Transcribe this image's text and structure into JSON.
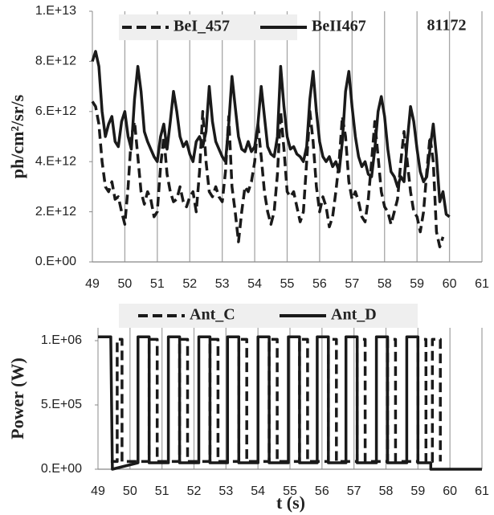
{
  "chart_data": [
    {
      "type": "line",
      "y_label": "ph/cm²/sr/s",
      "annotation": "81172",
      "grid": true,
      "x": [
        49.0,
        49.1,
        49.2,
        49.3,
        49.4,
        49.5,
        49.6,
        49.7,
        49.8,
        49.9,
        50.0,
        50.1,
        50.2,
        50.3,
        50.4,
        50.5,
        50.6,
        50.7,
        50.8,
        50.9,
        51.0,
        51.1,
        51.2,
        51.3,
        51.4,
        51.5,
        51.6,
        51.7,
        51.8,
        51.9,
        52.0,
        52.1,
        52.2,
        52.3,
        52.4,
        52.5,
        52.6,
        52.7,
        52.8,
        52.9,
        53.0,
        53.1,
        53.2,
        53.3,
        53.4,
        53.5,
        53.6,
        53.7,
        53.8,
        53.9,
        54.0,
        54.1,
        54.2,
        54.3,
        54.4,
        54.5,
        54.6,
        54.7,
        54.8,
        54.9,
        55.0,
        55.1,
        55.2,
        55.3,
        55.4,
        55.5,
        55.6,
        55.7,
        55.8,
        55.9,
        56.0,
        56.1,
        56.2,
        56.3,
        56.4,
        56.5,
        56.6,
        56.7,
        56.8,
        56.9,
        57.0,
        57.1,
        57.2,
        57.3,
        57.4,
        57.5,
        57.6,
        57.7,
        57.8,
        57.9,
        58.0,
        58.1,
        58.2,
        58.3,
        58.4,
        58.5,
        58.6,
        58.7,
        58.8,
        58.9,
        59.0,
        59.1,
        59.2,
        59.3,
        59.4,
        59.5,
        59.6,
        59.7,
        59.8,
        59.9,
        60.0
      ],
      "series": [
        {
          "name": "BeI_457",
          "color": "#1a1a1a",
          "style": "dashed",
          "values": [
            6400000000000.0,
            6200000000000.0,
            5500000000000.0,
            4000000000000.0,
            3000000000000.0,
            2800000000000.0,
            3200000000000.0,
            2500000000000.0,
            2600000000000.0,
            2000000000000.0,
            1500000000000.0,
            3000000000000.0,
            5000000000000.0,
            5600000000000.0,
            4200000000000.0,
            2800000000000.0,
            2300000000000.0,
            2800000000000.0,
            2500000000000.0,
            1800000000000.0,
            2000000000000.0,
            3800000000000.0,
            5000000000000.0,
            3500000000000.0,
            2800000000000.0,
            2400000000000.0,
            2500000000000.0,
            3000000000000.0,
            2400000000000.0,
            2200000000000.0,
            2600000000000.0,
            2800000000000.0,
            2000000000000.0,
            3600000000000.0,
            6000000000000.0,
            4000000000000.0,
            2800000000000.0,
            2600000000000.0,
            3000000000000.0,
            2600000000000.0,
            2400000000000.0,
            3600000000000.0,
            5800000000000.0,
            3000000000000.0,
            2000000000000.0,
            800000000000.0,
            2000000000000.0,
            3000000000000.0,
            2800000000000.0,
            3200000000000.0,
            4000000000000.0,
            5500000000000.0,
            4200000000000.0,
            2800000000000.0,
            2000000000000.0,
            1500000000000.0,
            2000000000000.0,
            3500000000000.0,
            6000000000000.0,
            4500000000000.0,
            2800000000000.0,
            2600000000000.0,
            2800000000000.0,
            2200000000000.0,
            1600000000000.0,
            2000000000000.0,
            4000000000000.0,
            6000000000000.0,
            4800000000000.0,
            3000000000000.0,
            2000000000000.0,
            2600000000000.0,
            2200000000000.0,
            1400000000000.0,
            1800000000000.0,
            2800000000000.0,
            4000000000000.0,
            5800000000000.0,
            5000000000000.0,
            3200000000000.0,
            2500000000000.0,
            2800000000000.0,
            2400000000000.0,
            1800000000000.0,
            1600000000000.0,
            2500000000000.0,
            4000000000000.0,
            5600000000000.0,
            4200000000000.0,
            2800000000000.0,
            2200000000000.0,
            2000000000000.0,
            1500000000000.0,
            2000000000000.0,
            2500000000000.0,
            4000000000000.0,
            5200000000000.0,
            4000000000000.0,
            2800000000000.0,
            2000000000000.0,
            1800000000000.0,
            1200000000000.0,
            2000000000000.0,
            3600000000000.0,
            5000000000000.0,
            4000000000000.0,
            1200000000000.0,
            600000000000.0,
            1000000000000.0,
            null,
            null
          ]
        },
        {
          "name": "BeII467",
          "color": "#1a1a1a",
          "style": "solid",
          "values": [
            8000000000000.0,
            8400000000000.0,
            7800000000000.0,
            6000000000000.0,
            5000000000000.0,
            5500000000000.0,
            5800000000000.0,
            4800000000000.0,
            4600000000000.0,
            5600000000000.0,
            6000000000000.0,
            5000000000000.0,
            4500000000000.0,
            6500000000000.0,
            7800000000000.0,
            6800000000000.0,
            5200000000000.0,
            4800000000000.0,
            4500000000000.0,
            4200000000000.0,
            4000000000000.0,
            5000000000000.0,
            5500000000000.0,
            4500000000000.0,
            5600000000000.0,
            6800000000000.0,
            6000000000000.0,
            5000000000000.0,
            4600000000000.0,
            4800000000000.0,
            4300000000000.0,
            4000000000000.0,
            4800000000000.0,
            5000000000000.0,
            4600000000000.0,
            5200000000000.0,
            7000000000000.0,
            5600000000000.0,
            4800000000000.0,
            4500000000000.0,
            4200000000000.0,
            4000000000000.0,
            5500000000000.0,
            7400000000000.0,
            6200000000000.0,
            5000000000000.0,
            4500000000000.0,
            4400000000000.0,
            4800000000000.0,
            4400000000000.0,
            4600000000000.0,
            5500000000000.0,
            7000000000000.0,
            5800000000000.0,
            4600000000000.0,
            4300000000000.0,
            4200000000000.0,
            5000000000000.0,
            7800000000000.0,
            6200000000000.0,
            5000000000000.0,
            4500000000000.0,
            4600000000000.0,
            4300000000000.0,
            4200000000000.0,
            4000000000000.0,
            4600000000000.0,
            6500000000000.0,
            7600000000000.0,
            6000000000000.0,
            4800000000000.0,
            4200000000000.0,
            4000000000000.0,
            4200000000000.0,
            3800000000000.0,
            4000000000000.0,
            3600000000000.0,
            4800000000000.0,
            6800000000000.0,
            7600000000000.0,
            6200000000000.0,
            5000000000000.0,
            4200000000000.0,
            3800000000000.0,
            4000000000000.0,
            3500000000000.0,
            3400000000000.0,
            4500000000000.0,
            6000000000000.0,
            6600000000000.0,
            5800000000000.0,
            4500000000000.0,
            3600000000000.0,
            3400000000000.0,
            3000000000000.0,
            3400000000000.0,
            3200000000000.0,
            4800000000000.0,
            6200000000000.0,
            5600000000000.0,
            4500000000000.0,
            3600000000000.0,
            3200000000000.0,
            3400000000000.0,
            4500000000000.0,
            5500000000000.0,
            4200000000000.0,
            2400000000000.0,
            2800000000000.0,
            1900000000000.0,
            1800000000000.0
          ]
        }
      ],
      "xlim": [
        49,
        61
      ],
      "xticks": [
        49,
        50,
        51,
        52,
        53,
        54,
        55,
        56,
        57,
        58,
        59,
        60,
        61
      ],
      "ylim": [
        0,
        10000000000000.0
      ],
      "yticks": [
        {
          "value": 0,
          "label": "0.E+00"
        },
        {
          "value": 2000000000000.0,
          "label": "2.E+12"
        },
        {
          "value": 4000000000000.0,
          "label": "4.E+12"
        },
        {
          "value": 6000000000000.0,
          "label": "6.E+12"
        },
        {
          "value": 8000000000000.0,
          "label": "8.E+12"
        },
        {
          "value": 10000000000000.0,
          "label": "1.E+13"
        }
      ]
    },
    {
      "type": "line",
      "y_label": "Power  (W)",
      "x_label": "t  (s)",
      "grid": true,
      "series": [
        {
          "name": "Ant_C",
          "color": "#1a1a1a",
          "style": "dashed",
          "x": [
            49.4,
            49.6,
            49.6,
            49.75,
            49.75,
            50.6,
            50.6,
            50.85,
            50.85,
            51.55,
            51.55,
            51.8,
            51.8,
            52.5,
            52.5,
            52.75,
            52.75,
            53.4,
            53.4,
            53.65,
            53.65,
            54.35,
            54.35,
            54.6,
            54.6,
            55.3,
            55.3,
            55.55,
            55.55,
            56.2,
            56.2,
            56.45,
            56.45,
            57.1,
            57.1,
            57.35,
            57.35,
            58.05,
            58.05,
            58.3,
            58.3,
            59.0,
            59.0,
            59.25,
            59.25,
            59.45,
            59.45,
            59.7,
            59.7
          ],
          "values": [
            60000.0,
            60000.0,
            1010000.0,
            1010000.0,
            60000.0,
            60000.0,
            1010000.0,
            1010000.0,
            60000.0,
            60000.0,
            1010000.0,
            1010000.0,
            60000.0,
            60000.0,
            1010000.0,
            1010000.0,
            60000.0,
            60000.0,
            1010000.0,
            1010000.0,
            60000.0,
            60000.0,
            1010000.0,
            1010000.0,
            60000.0,
            60000.0,
            1010000.0,
            1010000.0,
            60000.0,
            60000.0,
            1010000.0,
            1010000.0,
            60000.0,
            60000.0,
            1010000.0,
            1010000.0,
            60000.0,
            60000.0,
            1010000.0,
            1010000.0,
            60000.0,
            60000.0,
            1010000.0,
            1010000.0,
            60000.0,
            60000.0,
            1010000.0,
            1010000.0,
            60000.0
          ]
        },
        {
          "name": "Ant_D",
          "color": "#1a1a1a",
          "style": "solid",
          "x": [
            49.0,
            49.4,
            49.45,
            50.25,
            50.25,
            50.6,
            50.6,
            51.2,
            51.2,
            51.55,
            51.55,
            52.15,
            52.15,
            52.5,
            52.5,
            53.05,
            53.05,
            53.4,
            53.4,
            54.0,
            54.0,
            54.35,
            54.35,
            54.95,
            54.95,
            55.3,
            55.3,
            55.85,
            55.85,
            56.2,
            56.2,
            56.75,
            56.75,
            57.1,
            57.1,
            57.7,
            57.7,
            58.05,
            58.05,
            58.65,
            58.65,
            59.0,
            59.0,
            59.4,
            59.4,
            61.0
          ],
          "values": [
            1030000.0,
            1030000.0,
            0,
            50000.0,
            1030000.0,
            1030000.0,
            50000.0,
            50000.0,
            1030000.0,
            1030000.0,
            50000.0,
            50000.0,
            1030000.0,
            1030000.0,
            50000.0,
            50000.0,
            1030000.0,
            1030000.0,
            50000.0,
            50000.0,
            1030000.0,
            1030000.0,
            50000.0,
            50000.0,
            1030000.0,
            1030000.0,
            50000.0,
            50000.0,
            1030000.0,
            1030000.0,
            50000.0,
            50000.0,
            1030000.0,
            1030000.0,
            50000.0,
            50000.0,
            1030000.0,
            1030000.0,
            50000.0,
            50000.0,
            1030000.0,
            1030000.0,
            50000.0,
            50000.0,
            0,
            0
          ]
        }
      ],
      "xlim": [
        49,
        61
      ],
      "xticks": [
        49,
        50,
        51,
        52,
        53,
        54,
        55,
        56,
        57,
        58,
        59,
        60,
        61
      ],
      "ylim": [
        0,
        1100000.0
      ],
      "yticks": [
        {
          "value": 0,
          "label": "0.E+00"
        },
        {
          "value": 500000.0,
          "label": "5.E+05"
        },
        {
          "value": 1000000.0,
          "label": "1.E+06"
        }
      ]
    }
  ]
}
